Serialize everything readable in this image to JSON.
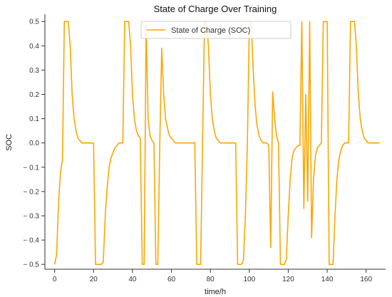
{
  "chart_data": {
    "type": "line",
    "title": "State of Charge Over Training",
    "xlabel": "time/h",
    "ylabel": "SOC",
    "xlim": [
      -5,
      170
    ],
    "ylim": [
      -0.52,
      0.53
    ],
    "x_ticks": [
      0,
      20,
      40,
      60,
      80,
      100,
      120,
      140,
      160
    ],
    "x_tick_labels": [
      "0",
      "20",
      "40",
      "60",
      "80",
      "100",
      "120",
      "140",
      "160"
    ],
    "y_ticks": [
      0.5,
      0.4,
      0.3,
      0.2,
      0.1,
      0.0,
      -0.1,
      -0.2,
      -0.3,
      -0.4,
      -0.5
    ],
    "y_tick_labels": [
      "0.5",
      "0.4",
      "0.3",
      "0.2",
      "0.1",
      "0.0",
      "− 0.1",
      "− 0.2",
      "− 0.3",
      "− 0.4",
      "− 0.5"
    ],
    "grid": false,
    "legend": "top-center",
    "series": [
      {
        "name": "State of Charge (SOC)",
        "color": "#ffa500",
        "x": [
          0,
          1,
          2,
          3,
          4,
          5,
          6,
          7,
          8,
          9,
          10,
          11,
          12,
          13,
          14,
          15,
          16,
          17,
          18,
          19,
          20,
          21,
          22,
          23,
          24,
          25,
          26,
          27,
          28,
          29,
          30,
          31,
          32,
          33,
          34,
          35,
          36,
          37,
          38,
          39,
          40,
          41,
          42,
          43,
          44,
          45,
          46,
          47,
          48,
          49,
          50,
          51,
          52,
          53,
          54,
          55,
          56,
          57,
          58,
          59,
          60,
          61,
          62,
          63,
          64,
          65,
          66,
          67,
          68,
          69,
          70,
          71,
          72,
          73,
          74,
          75,
          76,
          77,
          78,
          79,
          80,
          81,
          82,
          83,
          84,
          85,
          86,
          87,
          88,
          89,
          90,
          91,
          92,
          93,
          94,
          95,
          96,
          97,
          98,
          99,
          100,
          101,
          102,
          103,
          104,
          105,
          106,
          107,
          108,
          109,
          110,
          111,
          112,
          113,
          114,
          115,
          116,
          117,
          118,
          119,
          120,
          121,
          122,
          123,
          124,
          125,
          126,
          127,
          128,
          129,
          130,
          131,
          132,
          133,
          134,
          135,
          136,
          137,
          138,
          139,
          140,
          141,
          142,
          143,
          144,
          145,
          146,
          147,
          148,
          149,
          150,
          151,
          152,
          153,
          154,
          155,
          156,
          157,
          158,
          159,
          160,
          161,
          162,
          163,
          164,
          165,
          166,
          167
        ],
        "y": [
          -0.5,
          -0.46,
          -0.25,
          -0.12,
          -0.07,
          0.5,
          0.5,
          0.5,
          0.4,
          0.2,
          0.1,
          0.05,
          0.02,
          0.01,
          0.0,
          0.0,
          0.0,
          0.0,
          0.0,
          0.0,
          0.0,
          -0.5,
          -0.5,
          -0.5,
          -0.5,
          -0.49,
          -0.3,
          -0.18,
          -0.1,
          -0.06,
          -0.04,
          -0.02,
          -0.01,
          0.0,
          0.0,
          0.0,
          0.5,
          0.5,
          0.5,
          0.4,
          0.2,
          0.1,
          0.05,
          0.03,
          0.02,
          -0.5,
          -0.5,
          0.49,
          0.1,
          0.03,
          0.01,
          0.0,
          -0.5,
          -0.5,
          0.0,
          0.39,
          0.2,
          0.1,
          0.06,
          0.03,
          0.02,
          0.01,
          0.0,
          0.0,
          0.0,
          0.0,
          0.0,
          0.0,
          0.0,
          0.0,
          0.0,
          0.0,
          0.0,
          -0.5,
          -0.5,
          -0.5,
          0.0,
          0.5,
          0.5,
          0.4,
          0.2,
          0.1,
          0.05,
          0.02,
          0.01,
          0.0,
          0.0,
          0.0,
          0.0,
          0.0,
          0.0,
          0.0,
          0.0,
          0.0,
          -0.5,
          -0.5,
          -0.5,
          -0.48,
          -0.3,
          0.0,
          0.48,
          0.5,
          0.3,
          0.15,
          0.07,
          0.03,
          0.01,
          0.0,
          0.0,
          0.0,
          -0.01,
          -0.43,
          0.21,
          0.1,
          0.03,
          0.0,
          -0.5,
          -0.5,
          -0.5,
          -0.48,
          -0.3,
          -0.15,
          -0.06,
          -0.03,
          -0.02,
          -0.01,
          -0.01,
          0.5,
          -0.27,
          0.2,
          -0.24,
          0.5,
          -0.39,
          -0.15,
          -0.05,
          -0.02,
          -0.01,
          0.0,
          0.5,
          0.5,
          0.5,
          -0.5,
          -0.5,
          -0.5,
          -0.3,
          -0.15,
          -0.07,
          -0.03,
          -0.01,
          0.0,
          0.0,
          0.0,
          0.5,
          0.5,
          0.5,
          0.4,
          0.2,
          0.1,
          0.05,
          0.02,
          0.01,
          0.0,
          0.0,
          0.0,
          0.0,
          0.0,
          0.0,
          0.0
        ]
      }
    ]
  }
}
